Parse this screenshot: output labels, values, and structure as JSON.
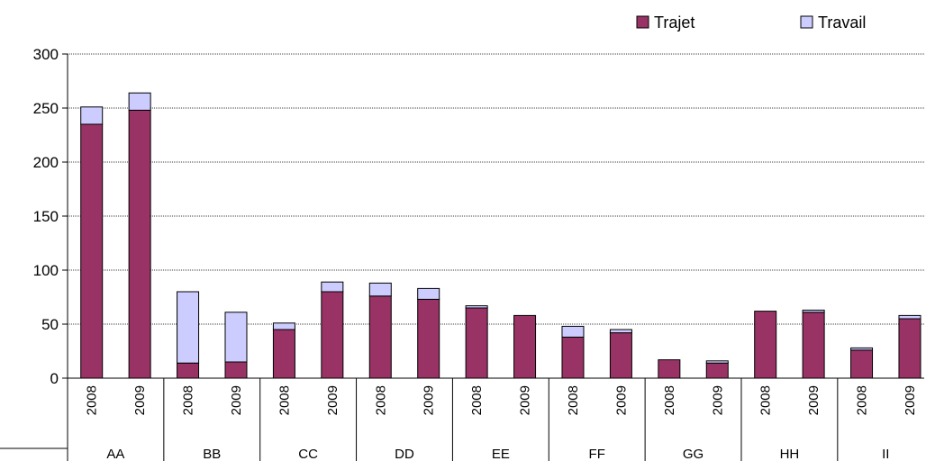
{
  "chart_data": {
    "type": "bar",
    "stacked": true,
    "groups": [
      "AA",
      "BB",
      "CC",
      "DD",
      "EE",
      "FF",
      "GG",
      "HH",
      "II"
    ],
    "years": [
      "2008",
      "2009"
    ],
    "series": [
      {
        "name": "Trajet",
        "color": "#993366",
        "values": [
          235,
          248,
          14,
          15,
          45,
          80,
          76,
          73,
          65,
          58,
          38,
          42,
          17,
          14,
          62,
          61,
          26,
          55
        ]
      },
      {
        "name": "Travail",
        "color": "#ccccff",
        "values": [
          16,
          16,
          66,
          46,
          6,
          9,
          12,
          10,
          2,
          0,
          10,
          3,
          0,
          2,
          0,
          2,
          2,
          3
        ]
      }
    ],
    "ylim": [
      0,
      300
    ],
    "yticks": [
      0,
      50,
      100,
      150,
      200,
      250,
      300
    ],
    "grid": true,
    "legend_position": "top-right"
  }
}
